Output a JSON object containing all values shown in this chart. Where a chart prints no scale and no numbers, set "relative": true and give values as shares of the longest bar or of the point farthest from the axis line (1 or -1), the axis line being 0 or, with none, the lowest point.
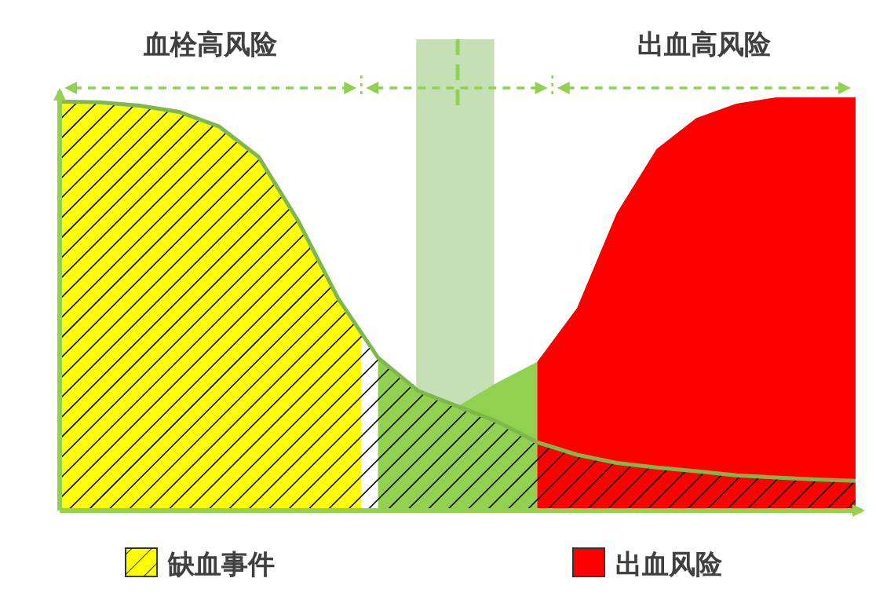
{
  "chart_data": {
    "type": "area",
    "relative": true,
    "legend": "bottom",
    "annotations": [
      "血栓高风险",
      "出血高风险"
    ],
    "categories": [
      null,
      null,
      null,
      null,
      null,
      null,
      null,
      null,
      null,
      null,
      null,
      null,
      null,
      null,
      null,
      null,
      null,
      null,
      null,
      null,
      null
    ],
    "series": [
      {
        "color": "#92d050",
        "values": [
          null,
          null,
          null,
          null,
          null,
          null,
          null,
          null,
          0.37,
          0.29,
          0.252,
          0.31,
          0.36,
          null,
          null,
          null,
          null,
          null,
          null,
          null,
          null
        ]
      },
      {
        "name": "出血风险",
        "color": "#ff0000",
        "values": [
          null,
          null,
          null,
          null,
          null,
          null,
          null,
          null,
          null,
          null,
          null,
          null,
          0.36,
          0.49,
          0.72,
          0.875,
          0.95,
          0.985,
          1,
          1,
          1
        ]
      },
      {
        "name": "缺血事件",
        "color": "#ffff00",
        "values": [
          0.99,
          0.988,
          0.98,
          0.965,
          0.93,
          0.856,
          0.7,
          0.513,
          0.37,
          0.29,
          0.252,
          0.215,
          0.165,
          0.135,
          0.115,
          0.104,
          0.095,
          0.085,
          0.08,
          0.075,
          0.072
        ]
      }
    ]
  }
}
